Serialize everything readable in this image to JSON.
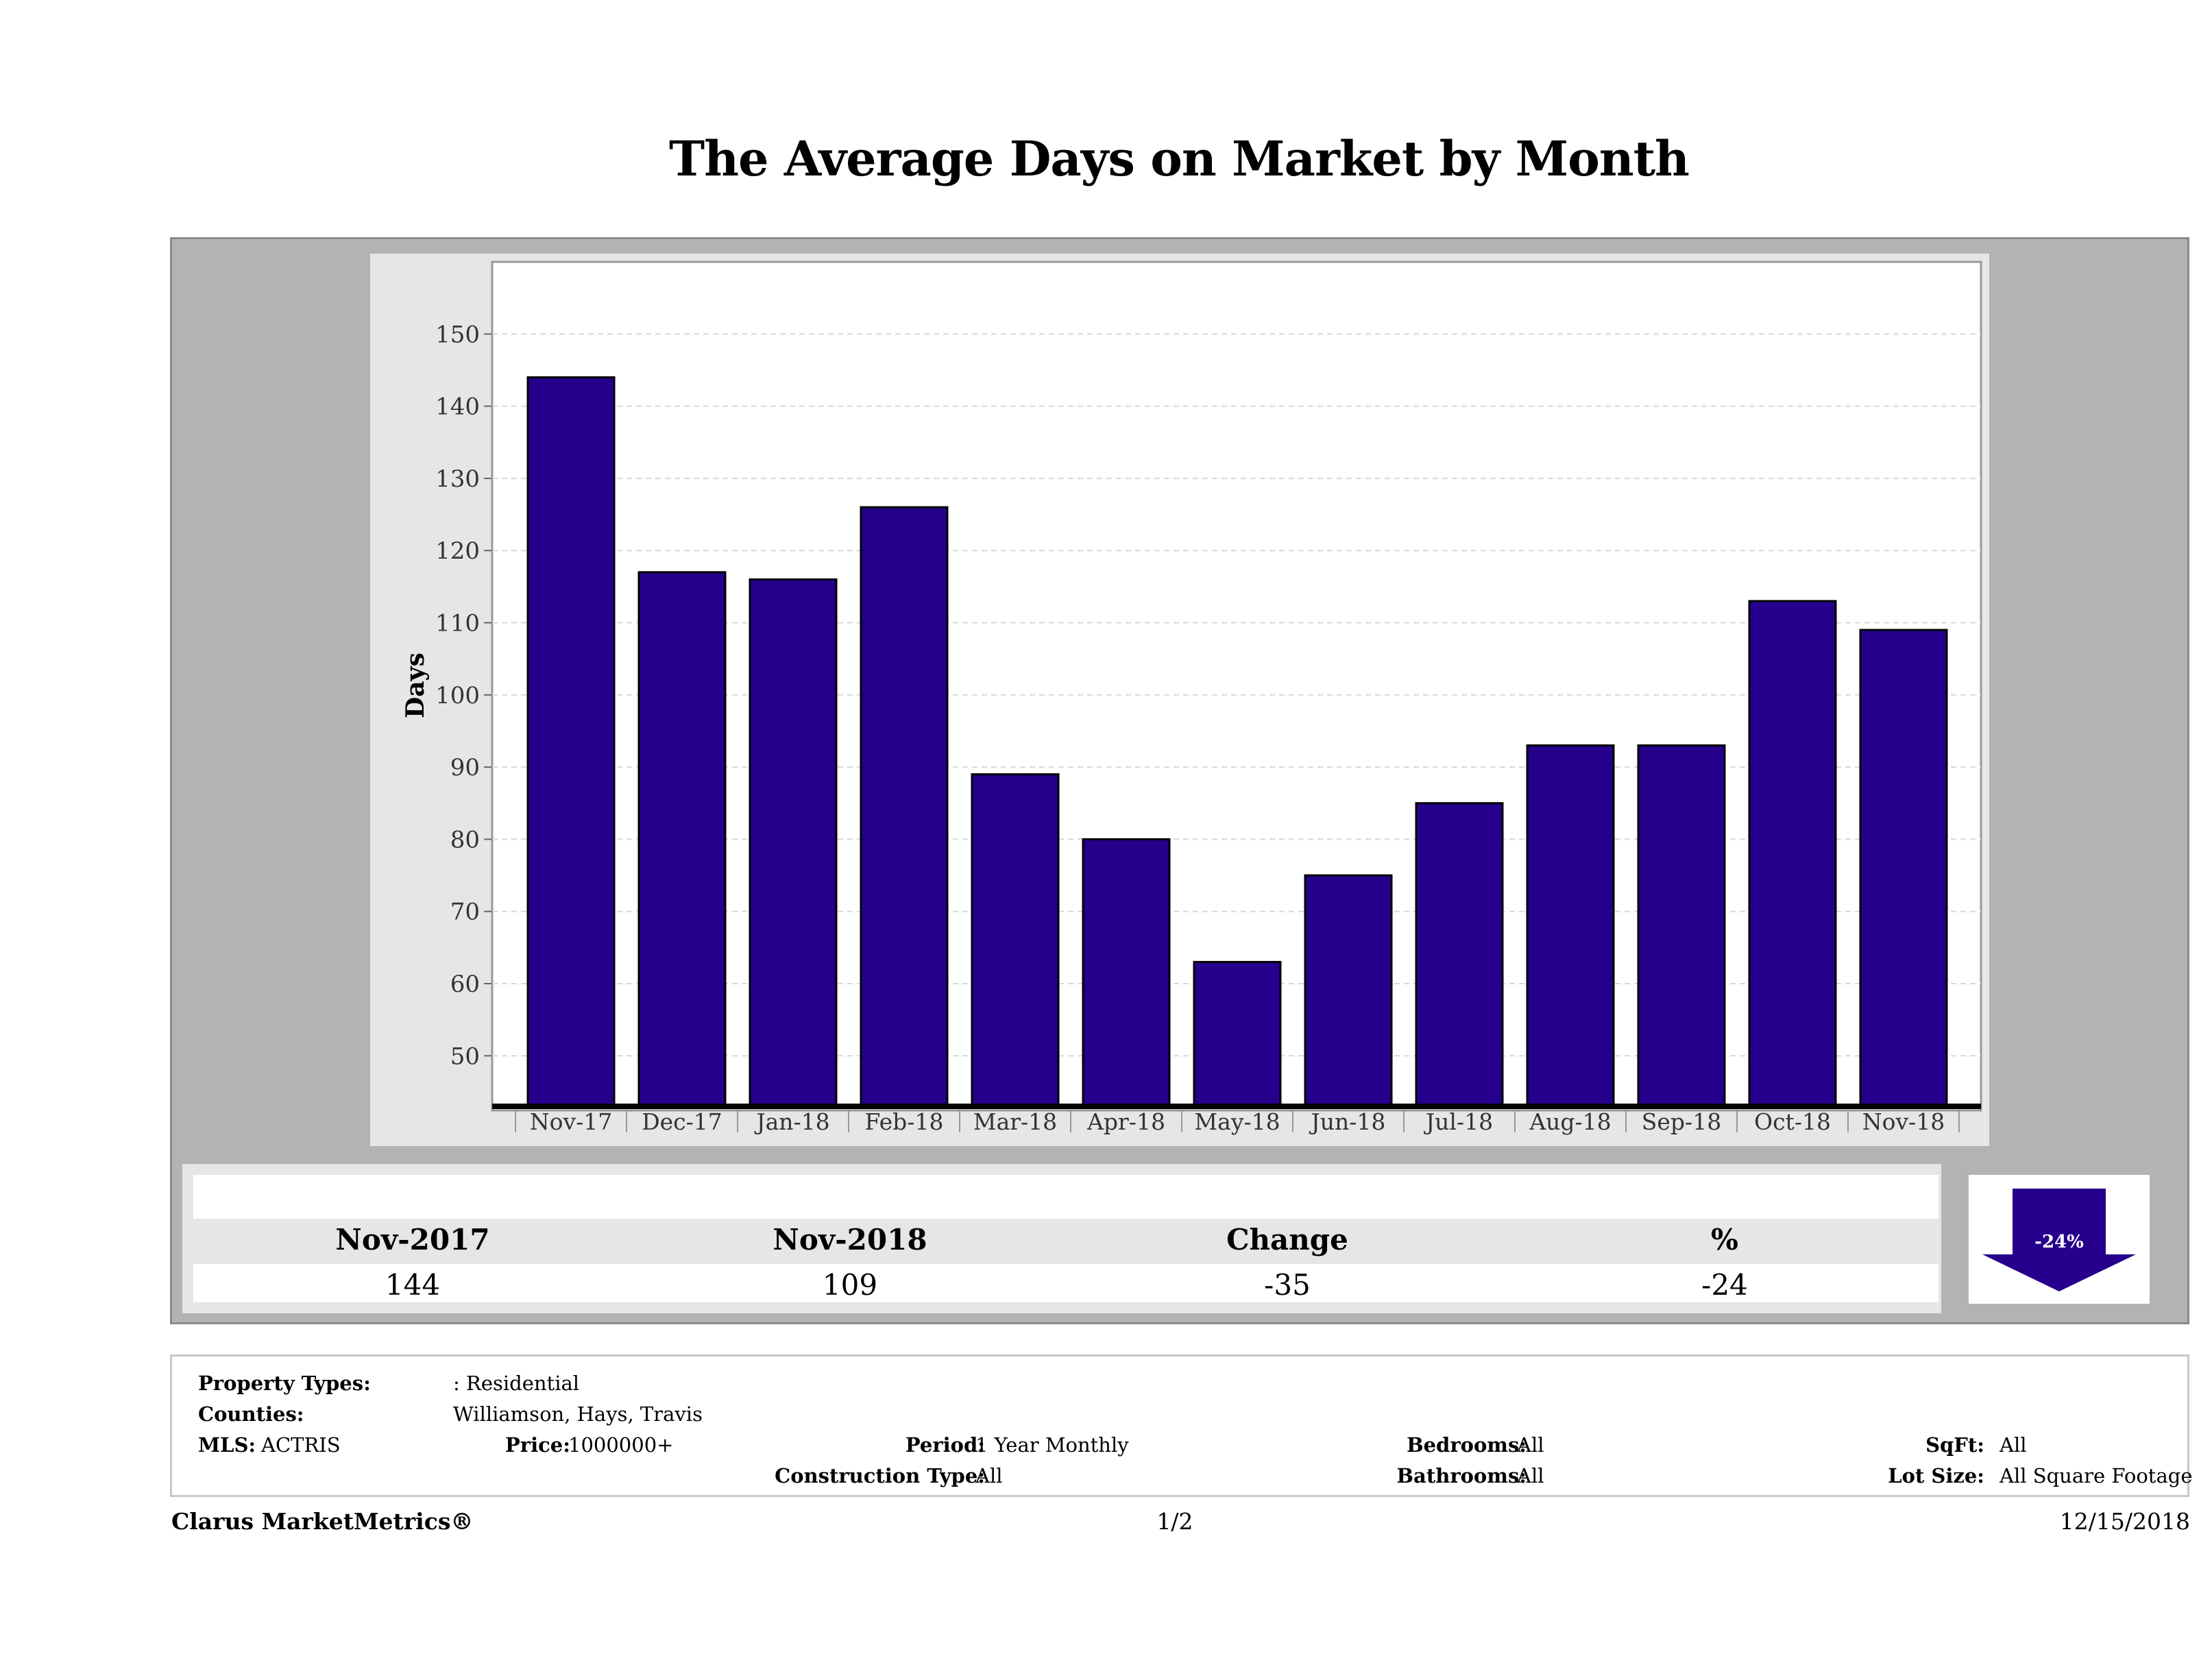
{
  "title": "The Average Days on Market by Month",
  "chart_data": {
    "type": "bar",
    "categories": [
      "Nov-17",
      "Dec-17",
      "Jan-18",
      "Feb-18",
      "Mar-18",
      "Apr-18",
      "May-18",
      "Jun-18",
      "Jul-18",
      "Aug-18",
      "Sep-18",
      "Oct-18",
      "Nov-18"
    ],
    "values": [
      144,
      117,
      116,
      126,
      89,
      80,
      63,
      75,
      85,
      93,
      93,
      113,
      109
    ],
    "ylabel": "Days",
    "xlabel": "",
    "yticks": [
      50,
      60,
      70,
      80,
      90,
      100,
      110,
      120,
      130,
      140,
      150
    ],
    "ylim": [
      43,
      160
    ],
    "grid": true,
    "bar_color": "#26008c"
  },
  "summary": {
    "headers": [
      "Nov-2017",
      "Nov-2018",
      "Change",
      "%"
    ],
    "values": [
      "144",
      "109",
      "-35",
      "-24"
    ],
    "arrow_label": "-24%",
    "arrow_direction": "down",
    "arrow_color": "#26008c"
  },
  "criteria": {
    "property_types_label": "Property Types:",
    "property_types_value": ": Residential",
    "counties_label": "Counties:",
    "counties_value": "Williamson, Hays, Travis",
    "mls_label": "MLS:",
    "mls_value": "ACTRIS",
    "price_label": "Price:",
    "price_value": "1000000+",
    "period_label": "Period:",
    "period_value": "1 Year Monthly",
    "construction_label": "Construction Type:",
    "construction_value": "All",
    "bedrooms_label": "Bedrooms:",
    "bedrooms_value": "All",
    "bathrooms_label": "Bathrooms:",
    "bathrooms_value": "All",
    "sqft_label": "SqFt:",
    "sqft_value": "All",
    "lot_label": "Lot Size:",
    "lot_value": "All Square Footage"
  },
  "footer": {
    "brand": "Clarus MarketMetrics®",
    "page": "1/2",
    "date": "12/15/2018"
  }
}
